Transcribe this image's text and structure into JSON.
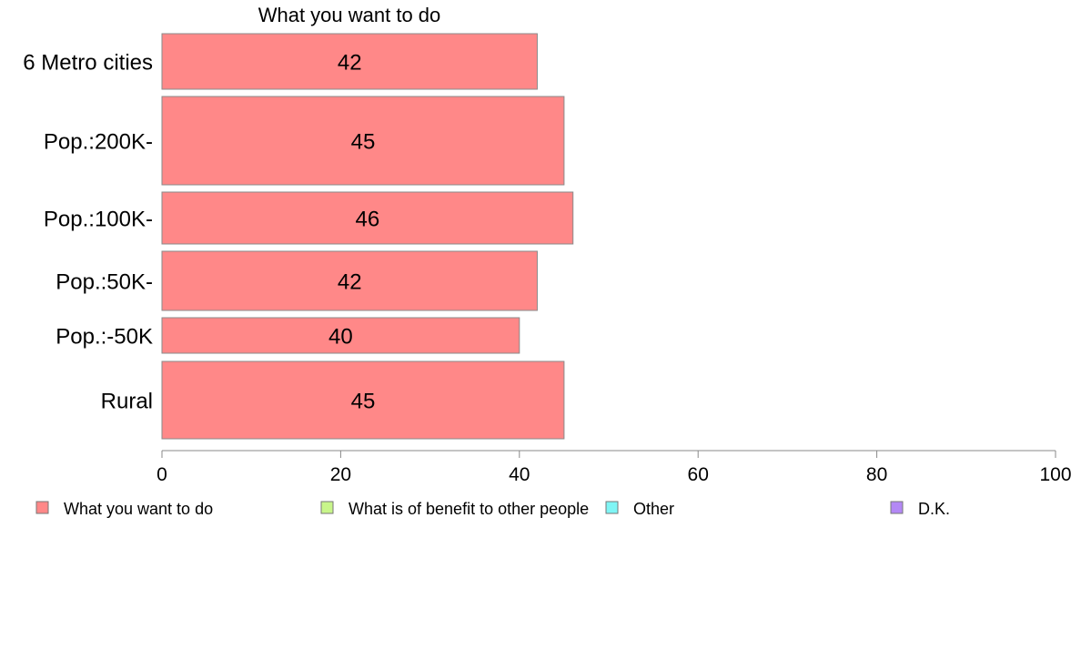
{
  "chart_data": {
    "type": "bar",
    "orientation": "horizontal",
    "title": "What you want to do",
    "categories": [
      "6 Metro cities",
      "Pop.:200K-",
      "Pop.:100K-",
      "Pop.:50K-",
      "Pop.:-50K",
      "Rural"
    ],
    "series": [
      {
        "name": "What you want to do",
        "color": "#ff8888",
        "values": [
          42,
          45,
          46,
          42,
          40,
          45
        ]
      }
    ],
    "xlim": [
      0,
      100
    ],
    "xticks": [
      0,
      20,
      40,
      60,
      80,
      100
    ],
    "grid": false,
    "legend": {
      "position": "bottom",
      "items": [
        {
          "label": "What you want to do",
          "color": "#ff8888"
        },
        {
          "label": "What is of benefit to other people",
          "color": "#c8f58a"
        },
        {
          "label": "Other",
          "color": "#7ff5f5"
        },
        {
          "label": "D.K.",
          "color": "#b388f5"
        }
      ]
    }
  }
}
